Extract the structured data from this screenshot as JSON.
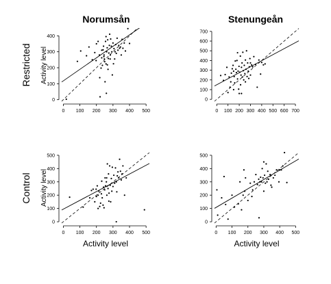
{
  "columns": [
    "Norumsån",
    "Stenungeån"
  ],
  "rows": [
    "Restricted",
    "Control"
  ],
  "style": {
    "point_color": "#000000",
    "fit_line_color": "#000000",
    "one_to_one_color": "#000000"
  },
  "chart_data": [
    {
      "type": "scatter",
      "panel": "Norumsån / Restricted",
      "xlabel": "",
      "ylabel": "Activity level",
      "xlim": [
        -10,
        520
      ],
      "ylim": [
        -10,
        440
      ],
      "xticks": [
        0,
        100,
        200,
        300,
        400,
        500
      ],
      "yticks": [
        0,
        100,
        200,
        300,
        400
      ],
      "grid": false,
      "fit_line": {
        "intercept": 118,
        "slope": 0.72,
        "style": "solid"
      },
      "one_to_one_line": {
        "style": "dashed"
      },
      "points": [
        [
          18,
          3
        ],
        [
          85,
          240
        ],
        [
          105,
          305
        ],
        [
          140,
          275
        ],
        [
          155,
          330
        ],
        [
          175,
          250
        ],
        [
          190,
          295
        ],
        [
          200,
          350
        ],
        [
          210,
          365
        ],
        [
          218,
          280
        ],
        [
          220,
          138
        ],
        [
          222,
          18
        ],
        [
          228,
          198
        ],
        [
          232,
          262
        ],
        [
          236,
          215
        ],
        [
          240,
          312
        ],
        [
          243,
          335
        ],
        [
          246,
          280
        ],
        [
          248,
          255
        ],
        [
          250,
          238
        ],
        [
          252,
          112
        ],
        [
          255,
          365
        ],
        [
          258,
          395
        ],
        [
          260,
          40
        ],
        [
          262,
          300
        ],
        [
          265,
          325
        ],
        [
          268,
          375
        ],
        [
          270,
          190
        ],
        [
          272,
          258
        ],
        [
          275,
          292
        ],
        [
          278,
          340
        ],
        [
          280,
          410
        ],
        [
          283,
          255
        ],
        [
          286,
          380
        ],
        [
          290,
          335
        ],
        [
          293,
          300
        ],
        [
          296,
          155
        ],
        [
          300,
          355
        ],
        [
          303,
          225
        ],
        [
          306,
          320
        ],
        [
          310,
          255
        ],
        [
          313,
          300
        ],
        [
          316,
          345
        ],
        [
          320,
          290
        ],
        [
          325,
          385
        ],
        [
          330,
          310
        ],
        [
          335,
          340
        ],
        [
          340,
          322
        ],
        [
          345,
          330
        ],
        [
          350,
          280
        ],
        [
          355,
          378
        ],
        [
          360,
          322
        ],
        [
          368,
          355
        ],
        [
          375,
          305
        ],
        [
          390,
          445
        ],
        [
          400,
          352
        ],
        [
          198,
          245
        ],
        [
          245,
          270
        ],
        [
          258,
          224
        ],
        [
          266,
          218
        ],
        [
          284,
          280
        ],
        [
          232,
          310
        ]
      ]
    },
    {
      "type": "scatter",
      "panel": "Stenungeån / Restricted",
      "xlabel": "",
      "ylabel": "",
      "xlim": [
        -20,
        730
      ],
      "ylim": [
        -20,
        720
      ],
      "xticks": [
        0,
        100,
        200,
        300,
        400,
        500,
        600,
        700
      ],
      "yticks": [
        0,
        100,
        200,
        300,
        400,
        500,
        600,
        700
      ],
      "grid": false,
      "fit_line": {
        "intercept": 150,
        "slope": 0.62,
        "style": "solid"
      },
      "one_to_one_line": {
        "style": "dashed"
      },
      "points": [
        [
          35,
          245
        ],
        [
          60,
          195
        ],
        [
          75,
          255
        ],
        [
          90,
          330
        ],
        [
          100,
          70
        ],
        [
          110,
          230
        ],
        [
          118,
          125
        ],
        [
          125,
          180
        ],
        [
          130,
          270
        ],
        [
          138,
          315
        ],
        [
          145,
          350
        ],
        [
          150,
          290
        ],
        [
          155,
          235
        ],
        [
          160,
          170
        ],
        [
          165,
          395
        ],
        [
          170,
          310
        ],
        [
          175,
          275
        ],
        [
          180,
          400
        ],
        [
          185,
          210
        ],
        [
          190,
          290
        ],
        [
          195,
          105
        ],
        [
          198,
          340
        ],
        [
          200,
          60
        ],
        [
          205,
          280
        ],
        [
          210,
          445
        ],
        [
          212,
          150
        ],
        [
          216,
          250
        ],
        [
          220,
          330
        ],
        [
          225,
          375
        ],
        [
          228,
          230
        ],
        [
          232,
          485
        ],
        [
          236,
          295
        ],
        [
          240,
          200
        ],
        [
          245,
          350
        ],
        [
          250,
          265
        ],
        [
          255,
          405
        ],
        [
          260,
          310
        ],
        [
          265,
          500
        ],
        [
          270,
          235
        ],
        [
          275,
          375
        ],
        [
          280,
          290
        ],
        [
          285,
          215
        ],
        [
          290,
          335
        ],
        [
          295,
          420
        ],
        [
          300,
          375
        ],
        [
          310,
          355
        ],
        [
          320,
          335
        ],
        [
          330,
          440
        ],
        [
          345,
          360
        ],
        [
          360,
          125
        ],
        [
          375,
          405
        ],
        [
          390,
          260
        ],
        [
          400,
          380
        ],
        [
          415,
          355
        ],
        [
          430,
          365
        ],
        [
          185,
          480
        ],
        [
          220,
          60
        ],
        [
          150,
          100
        ],
        [
          255,
          180
        ],
        [
          300,
          250
        ]
      ]
    },
    {
      "type": "scatter",
      "panel": "Norumsån / Control",
      "xlabel": "Activity level",
      "ylabel": "Activity level",
      "xlim": [
        -10,
        520
      ],
      "ylim": [
        -10,
        520
      ],
      "xticks": [
        0,
        100,
        200,
        300,
        400,
        500
      ],
      "yticks": [
        0,
        100,
        200,
        300,
        400,
        500
      ],
      "grid": false,
      "fit_line": {
        "intercept": 95,
        "slope": 0.66,
        "style": "solid"
      },
      "one_to_one_line": {
        "style": "dashed"
      },
      "points": [
        [
          38,
          185
        ],
        [
          120,
          110
        ],
        [
          160,
          180
        ],
        [
          170,
          235
        ],
        [
          180,
          245
        ],
        [
          190,
          150
        ],
        [
          200,
          190
        ],
        [
          205,
          270
        ],
        [
          210,
          100
        ],
        [
          215,
          230
        ],
        [
          220,
          115
        ],
        [
          225,
          140
        ],
        [
          230,
          210
        ],
        [
          232,
          305
        ],
        [
          235,
          180
        ],
        [
          240,
          125
        ],
        [
          243,
          260
        ],
        [
          246,
          105
        ],
        [
          250,
          240
        ],
        [
          252,
          330
        ],
        [
          255,
          270
        ],
        [
          260,
          300
        ],
        [
          263,
          200
        ],
        [
          266,
          435
        ],
        [
          270,
          250
        ],
        [
          273,
          360
        ],
        [
          276,
          215
        ],
        [
          280,
          420
        ],
        [
          283,
          275
        ],
        [
          286,
          150
        ],
        [
          290,
          325
        ],
        [
          293,
          230
        ],
        [
          296,
          410
        ],
        [
          300,
          265
        ],
        [
          305,
          350
        ],
        [
          310,
          290
        ],
        [
          315,
          405
        ],
        [
          320,
          300
        ],
        [
          323,
          225
        ],
        [
          326,
          345
        ],
        [
          330,
          375
        ],
        [
          335,
          330
        ],
        [
          340,
          470
        ],
        [
          345,
          380
        ],
        [
          350,
          315
        ],
        [
          355,
          360
        ],
        [
          360,
          420
        ],
        [
          370,
          200
        ],
        [
          380,
          330
        ],
        [
          490,
          90
        ],
        [
          320,
          0
        ],
        [
          275,
          155
        ],
        [
          262,
          330
        ],
        [
          210,
          200
        ],
        [
          198,
          245
        ]
      ]
    },
    {
      "type": "scatter",
      "panel": "Stenungeån / Control",
      "xlabel": "Activity level",
      "ylabel": "",
      "xlim": [
        -10,
        520
      ],
      "ylim": [
        -10,
        520
      ],
      "xticks": [
        0,
        100,
        200,
        300,
        400,
        500
      ],
      "yticks": [
        0,
        100,
        200,
        300,
        400,
        500
      ],
      "grid": false,
      "fit_line": {
        "intercept": 108,
        "slope": 0.7,
        "style": "solid"
      },
      "one_to_one_line": {
        "style": "dashed"
      },
      "points": [
        [
          5,
          240
        ],
        [
          10,
          50
        ],
        [
          35,
          180
        ],
        [
          50,
          340
        ],
        [
          60,
          130
        ],
        [
          75,
          20
        ],
        [
          100,
          200
        ],
        [
          115,
          110
        ],
        [
          140,
          135
        ],
        [
          150,
          300
        ],
        [
          160,
          90
        ],
        [
          170,
          200
        ],
        [
          180,
          230
        ],
        [
          185,
          330
        ],
        [
          200,
          160
        ],
        [
          215,
          290
        ],
        [
          230,
          240
        ],
        [
          240,
          300
        ],
        [
          250,
          355
        ],
        [
          260,
          280
        ],
        [
          268,
          320
        ],
        [
          275,
          300
        ],
        [
          280,
          335
        ],
        [
          285,
          300
        ],
        [
          290,
          400
        ],
        [
          295,
          330
        ],
        [
          300,
          450
        ],
        [
          305,
          350
        ],
        [
          310,
          290
        ],
        [
          315,
          435
        ],
        [
          320,
          300
        ],
        [
          325,
          380
        ],
        [
          330,
          320
        ],
        [
          340,
          355
        ],
        [
          350,
          260
        ],
        [
          360,
          330
        ],
        [
          370,
          350
        ],
        [
          380,
          390
        ],
        [
          395,
          300
        ],
        [
          400,
          390
        ],
        [
          410,
          390
        ],
        [
          420,
          420
        ],
        [
          430,
          520
        ],
        [
          445,
          295
        ],
        [
          175,
          390
        ],
        [
          225,
          190
        ],
        [
          300,
          230
        ],
        [
          345,
          275
        ],
        [
          270,
          30
        ]
      ]
    }
  ]
}
